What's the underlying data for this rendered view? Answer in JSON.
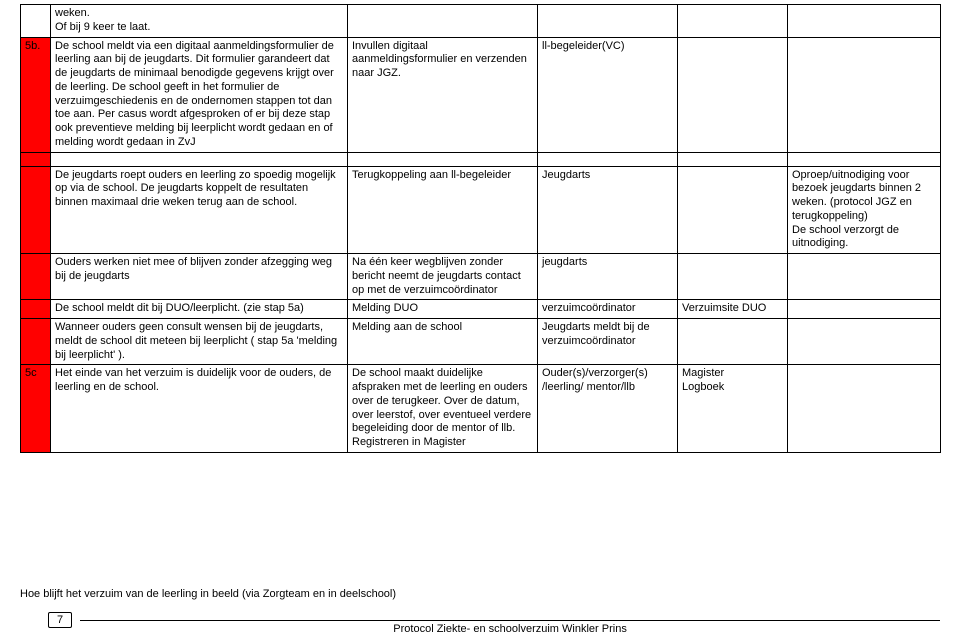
{
  "rows": [
    {
      "num": "",
      "red": false,
      "c1": "weken.\nOf bij 9 keer te laat.",
      "c2": "",
      "c3": "",
      "c4": "",
      "c5": ""
    },
    {
      "num": "5b.",
      "red": true,
      "c1": "De school meldt via een digitaal aanmeldingsformulier de leerling aan bij de jeugdarts. Dit formulier garandeert dat de jeugdarts de minimaal benodigde gegevens krijgt over de leerling. De school geeft in het formulier de verzuimgeschiedenis en de ondernomen stappen tot dan toe aan. Per casus wordt afgesproken of er bij deze stap ook preventieve melding bij leerplicht wordt gedaan en of melding wordt gedaan in ZvJ",
      "c2": "Invullen digitaal aanmeldingsformulier en verzenden naar JGZ.",
      "c3": "ll-begeleider(VC)",
      "c4": "",
      "c5": ""
    },
    {
      "spacer": true
    },
    {
      "num": "",
      "red": true,
      "c1": "De jeugdarts roept ouders en leerling zo spoedig mogelijk op via de school. De jeugdarts koppelt de resultaten binnen maximaal drie weken terug aan de school.",
      "c2": "Terugkoppeling aan ll-begeleider",
      "c3": "Jeugdarts",
      "c4": "",
      "c5": "Oproep/uitnodiging voor bezoek jeugdarts binnen 2 weken. (protocol JGZ en terugkoppeling)\nDe school verzorgt de uitnodiging."
    },
    {
      "num": "",
      "red": true,
      "c1": "Ouders werken niet mee of blijven zonder afzegging weg bij de jeugdarts",
      "c2": "Na één keer wegblijven zonder bericht neemt de jeugdarts contact op met de verzuimcoördinator",
      "c3": "jeugdarts",
      "c4": "",
      "c5": ""
    },
    {
      "num": "",
      "red": true,
      "c1": "De school meldt dit bij DUO/leerplicht. (zie stap 5a)",
      "c2": "Melding DUO",
      "c3": "verzuimcoördinator",
      "c4": "Verzuimsite DUO",
      "c5": ""
    },
    {
      "num": "",
      "red": true,
      "c1": "Wanneer ouders geen consult wensen bij de jeugdarts, meldt de school dit meteen bij leerplicht ( stap 5a 'melding bij leerplicht' ).",
      "c2": "Melding aan de school",
      "c3": "Jeugdarts meldt bij de verzuimcoördinator",
      "c4": "",
      "c5": ""
    },
    {
      "num": "5c",
      "red": true,
      "c1": "Het einde van het verzuim is duidelijk voor de ouders, de leerling en de school.",
      "c2": "De school maakt duidelijke afspraken met de leerling en ouders over de terugkeer. Over de datum, over leerstof, over eventueel verdere begeleiding door de mentor of llb.\nRegistreren in Magister",
      "c3": "Ouder(s)/verzorger(s) /leerling/ mentor/llb",
      "c4": "Magister\nLogboek",
      "c5": ""
    }
  ],
  "footerLine": "Hoe blijft het verzuim van de leerling in beeld (via Zorgteam en in deelschool)",
  "pageNumber": "7",
  "footerTitle": "Protocol Ziekte- en schoolverzuim Winkler Prins"
}
